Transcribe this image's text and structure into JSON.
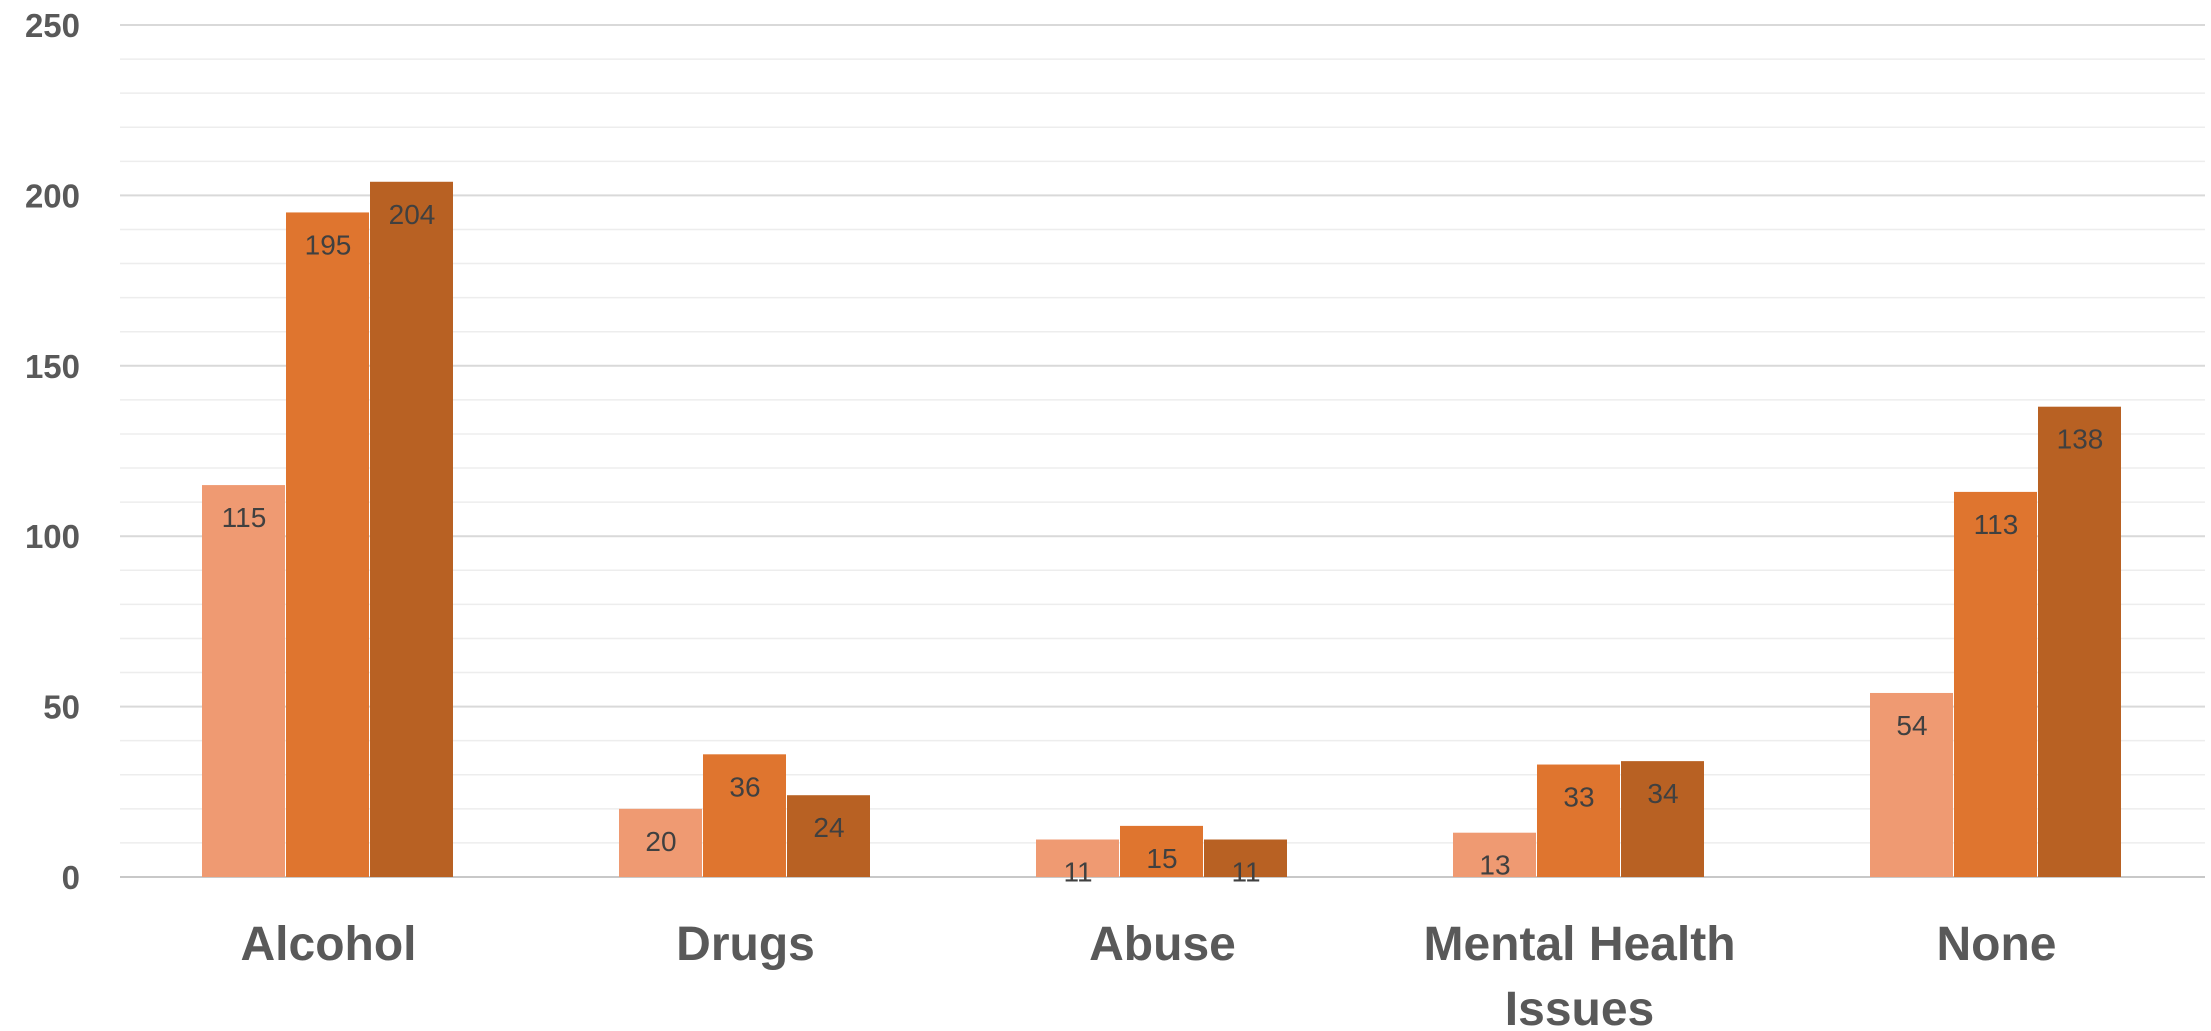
{
  "chart_data": {
    "type": "bar",
    "title": "",
    "xlabel": "",
    "ylabel": "",
    "categories": [
      "Alcohol",
      "Drugs",
      "Abuse",
      "Mental Health Issues",
      "None"
    ],
    "category_lines": [
      [
        "Alcohol"
      ],
      [
        "Drugs"
      ],
      [
        "Abuse"
      ],
      [
        "Mental Health",
        "Issues"
      ],
      [
        "None"
      ]
    ],
    "series": [
      {
        "values": [
          115,
          20,
          11,
          13,
          54
        ],
        "color": "#ef9a72"
      },
      {
        "values": [
          195,
          36,
          15,
          33,
          113
        ],
        "color": "#df752f"
      },
      {
        "values": [
          204,
          24,
          11,
          34,
          138
        ],
        "color": "#b86123"
      }
    ],
    "ylim": [
      0,
      250
    ],
    "yticks": [
      0,
      50,
      100,
      150,
      200,
      250
    ],
    "minor_step": 10,
    "grid": true,
    "legend": "none",
    "data_labels": true
  }
}
